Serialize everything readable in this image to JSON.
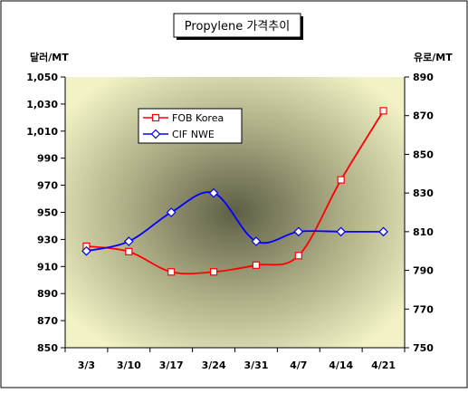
{
  "chart_data": {
    "type": "line",
    "title": "Propylene 가격추이",
    "categories": [
      "3/3",
      "3/10",
      "3/17",
      "3/24",
      "3/31",
      "4/7",
      "4/14",
      "4/21"
    ],
    "y_left": {
      "label": "달러/MT",
      "range": [
        850,
        1050
      ],
      "ticks": [
        "850",
        "870",
        "890",
        "910",
        "930",
        "950",
        "970",
        "990",
        "1,010",
        "1,030",
        "1,050"
      ]
    },
    "y_right": {
      "label": "유로/MT",
      "range": [
        750,
        890
      ],
      "ticks": [
        "750",
        "770",
        "790",
        "810",
        "830",
        "850",
        "870",
        "890"
      ]
    },
    "grid": false,
    "legend_position": "top-left",
    "series": [
      {
        "name": "FOB Korea",
        "axis": "left",
        "color": "#ff0000",
        "marker": "square",
        "values": [
          925,
          921,
          906,
          906,
          911,
          918,
          974,
          1025
        ]
      },
      {
        "name": "CIF NWE",
        "axis": "right",
        "color": "#0000ff",
        "marker": "diamond",
        "values": [
          800,
          805,
          820,
          830,
          805,
          810,
          810,
          810
        ]
      }
    ],
    "colors": {
      "plot_light": "#f2f2c6",
      "plot_dark": "#5e5e46"
    }
  }
}
